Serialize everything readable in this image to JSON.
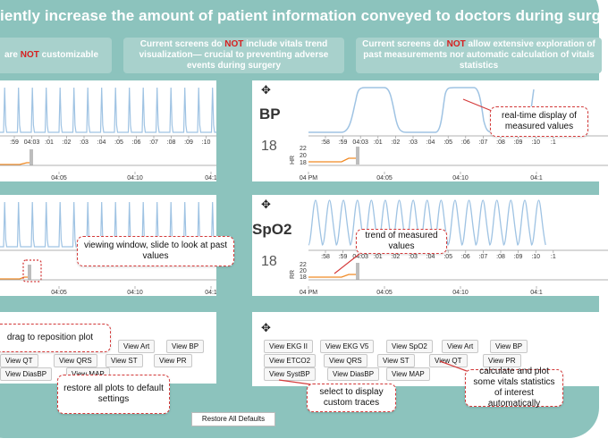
{
  "title": "iently increase the amount of patient information conveyed to doctors during surgery?",
  "problems": [
    {
      "pre": "are ",
      "not": "NOT",
      "post": " customizable"
    },
    {
      "pre": "Current screens do ",
      "not": "NOT",
      "post": " include vitals trend visualization— crucial to preventing adverse events during surgery"
    },
    {
      "pre": "Current  screens do ",
      "not": "NOT",
      "post": " allow extensive exploration of past measurements nor automatic calculation of vitals statistics"
    }
  ],
  "panels": {
    "bp": {
      "title": "BP",
      "value": "18",
      "small_label": "HR",
      "small_ticks": [
        "22",
        "20",
        "18"
      ]
    },
    "spo2": {
      "title": "SpO2",
      "value": "18",
      "small_label": "RR",
      "small_ticks": [
        "22",
        "20",
        "18"
      ]
    }
  },
  "axes": {
    "left_top_ticks": [
      ":59",
      "04:03",
      ":01",
      ":02",
      ":03",
      ":04",
      ":05",
      ":06",
      ":07",
      ":08",
      ":09",
      ":10",
      ":1"
    ],
    "right_top_ticks": [
      ":58",
      ":59",
      "04:03",
      ":01",
      ":02",
      ":03",
      ":04",
      ":05",
      ":06",
      ":07",
      ":08",
      ":09",
      ":10",
      ":1"
    ],
    "left_bottom_ticks": [
      "04:05",
      "04:10",
      "04:1"
    ],
    "right_bottom_ticks": [
      "04 PM",
      "04:05",
      "04:10",
      "04:1"
    ]
  },
  "annotations": {
    "realtime": "real-time display of measured values",
    "window": "viewing window, slide to look at past values",
    "trend": "trend of measured values",
    "drag": "drag to reposition plot",
    "select": "select to display custom traces",
    "stats": "calculate and plot some vitals statistics of interest automatically",
    "restore_note": "restore all plots to default settings"
  },
  "buttons_left": {
    "view_art": "View Art",
    "view_bp": "View BP",
    "view_qrs": "View QRS",
    "view_st": "View ST",
    "view_qt": "View QT",
    "view_pr": "View PR",
    "view_diasbp": "View DiasBP",
    "view_map": "View MAP"
  },
  "buttons_right": {
    "view_ekg_ii": "View EKG II",
    "view_ekg_v5": "View EKG V5",
    "view_spo2": "View SpO2",
    "view_art": "View Art",
    "view_bp": "View BP",
    "view_etco2": "View ETCO2",
    "view_qrs": "View QRS",
    "view_st": "View ST",
    "view_qt": "View QT",
    "view_pr": "View PR",
    "view_systbp": "View SystBP",
    "view_diasbp": "View DiasBP",
    "view_map": "View MAP"
  },
  "restore_button": "Restore All Defaults",
  "move_icon": "move-arrows-icon",
  "colors": {
    "poster": "#8cc3bd",
    "wave": "#9fc3e3",
    "trend": "#f08a24",
    "warning": "#d62020",
    "annotation_border": "#d43a3a"
  }
}
